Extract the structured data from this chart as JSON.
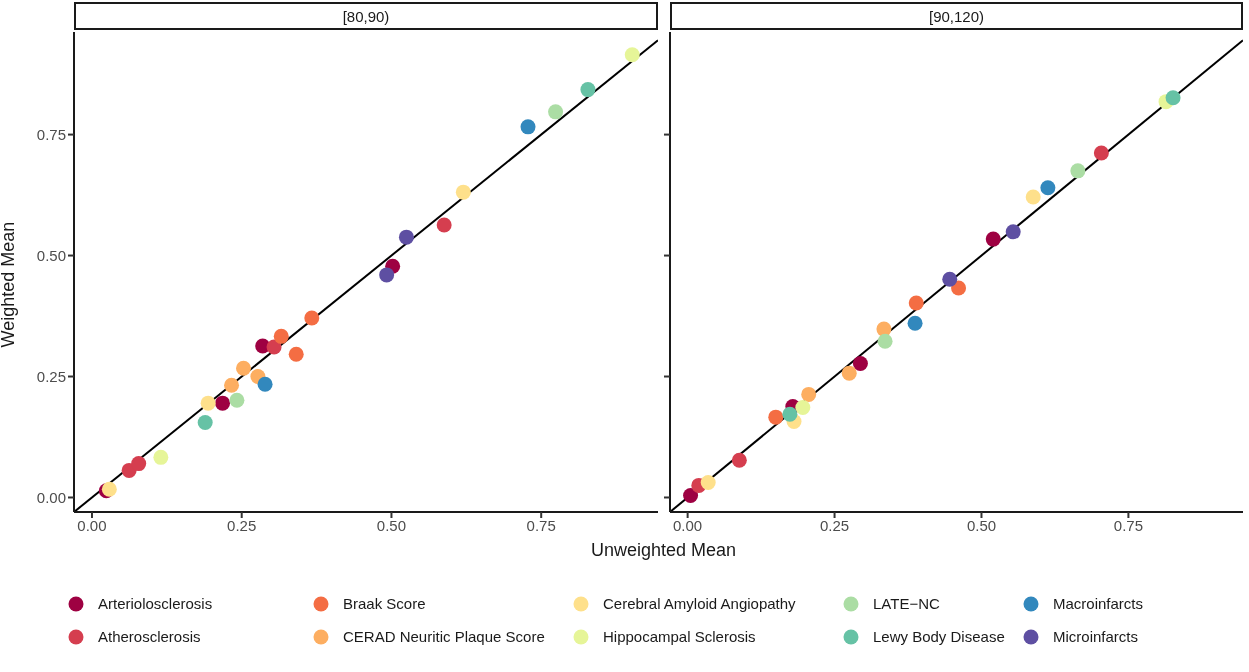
{
  "chart_data": [
    {
      "type": "scatter",
      "title": "[80,90)",
      "xlabel": "Unweighted Mean",
      "ylabel": "Weighted Mean",
      "xlim": [
        -0.03,
        0.945
      ],
      "ylim": [
        -0.03,
        0.962
      ],
      "xticks": [
        {
          "value": 0,
          "label": "0.00"
        },
        {
          "value": 0.25,
          "label": "0.25"
        },
        {
          "value": 0.5,
          "label": "0.50"
        },
        {
          "value": 0.75,
          "label": "0.75"
        }
      ],
      "yticks": [
        {
          "value": 0,
          "label": "0.00"
        },
        {
          "value": 0.25,
          "label": "0.25"
        },
        {
          "value": 0.5,
          "label": "0.50"
        },
        {
          "value": 0.75,
          "label": "0.75"
        }
      ],
      "marker": "circle",
      "legend": "bottom",
      "series": [
        {
          "name": "Arteriolosclerosis",
          "color": "#9e0142",
          "x": [
            0.024,
            0.218,
            0.285,
            0.502
          ],
          "values": [
            0.014,
            0.195,
            0.313,
            0.478
          ]
        },
        {
          "name": "Atherosclerosis",
          "color": "#d53e4f",
          "x": [
            0.062,
            0.078,
            0.304,
            0.588
          ],
          "values": [
            0.056,
            0.07,
            0.311,
            0.563
          ]
        },
        {
          "name": "Braak Score",
          "color": "#f46d43",
          "x": [
            0.316,
            0.341,
            0.367
          ],
          "values": [
            0.333,
            0.296,
            0.371
          ]
        },
        {
          "name": "CERAD Neuritic Plaque Score",
          "color": "#fdae61",
          "x": [
            0.233,
            0.253,
            0.277
          ],
          "values": [
            0.232,
            0.267,
            0.25
          ]
        },
        {
          "name": "Cerebral Amyloid Angiopathy",
          "color": "#fee08b",
          "x": [
            0.029,
            0.194,
            0.62
          ],
          "values": [
            0.017,
            0.195,
            0.631
          ]
        },
        {
          "name": "Hippocampal Sclerosis",
          "color": "#e6f598",
          "x": [
            0.115,
            0.902
          ],
          "values": [
            0.083,
            0.915
          ]
        },
        {
          "name": "LATE−NC",
          "color": "#abdda4",
          "x": [
            0.242,
            0.774
          ],
          "values": [
            0.201,
            0.797
          ]
        },
        {
          "name": "Lewy Body Disease",
          "color": "#66c2a5",
          "x": [
            0.189,
            0.828
          ],
          "values": [
            0.155,
            0.843
          ]
        },
        {
          "name": "Macroinfarcts",
          "color": "#3288bd",
          "x": [
            0.289,
            0.728
          ],
          "values": [
            0.234,
            0.766
          ]
        },
        {
          "name": "Microinfarcts",
          "color": "#5e4fa2",
          "x": [
            0.492,
            0.525
          ],
          "values": [
            0.46,
            0.538
          ]
        },
        {
          "type": "line",
          "marker": "none",
          "color": "#000000",
          "x": [
            -0.03,
            0.945
          ],
          "values": [
            -0.03,
            0.945
          ]
        }
      ]
    },
    {
      "type": "scatter",
      "title": "[90,120)",
      "xlim": [
        -0.03,
        0.945
      ],
      "ylim": [
        -0.03,
        0.962
      ],
      "xticks": [
        {
          "value": 0,
          "label": "0.00"
        },
        {
          "value": 0.25,
          "label": "0.25"
        },
        {
          "value": 0.5,
          "label": "0.50"
        },
        {
          "value": 0.75,
          "label": "0.75"
        }
      ],
      "yticks": [
        0,
        0.25,
        0.5,
        0.75
      ],
      "tick_labels": "x",
      "marker": "circle",
      "series": [
        {
          "color": "#9e0142",
          "x": [
            0.005,
            0.179,
            0.294,
            0.52
          ],
          "values": [
            0.004,
            0.188,
            0.277,
            0.534
          ]
        },
        {
          "color": "#d53e4f",
          "x": [
            0.019,
            0.088,
            0.704
          ],
          "values": [
            0.025,
            0.077,
            0.712
          ]
        },
        {
          "color": "#f46d43",
          "x": [
            0.15,
            0.389,
            0.461
          ],
          "values": [
            0.166,
            0.402,
            0.433
          ]
        },
        {
          "color": "#fdae61",
          "x": [
            0.206,
            0.275,
            0.334
          ],
          "values": [
            0.213,
            0.257,
            0.348
          ]
        },
        {
          "color": "#fee08b",
          "x": [
            0.035,
            0.181,
            0.588
          ],
          "values": [
            0.031,
            0.157,
            0.621
          ]
        },
        {
          "color": "#e6f598",
          "x": [
            0.196,
            0.814
          ],
          "values": [
            0.186,
            0.818
          ]
        },
        {
          "color": "#abdda4",
          "x": [
            0.336,
            0.664
          ],
          "values": [
            0.323,
            0.675
          ]
        },
        {
          "color": "#66c2a5",
          "x": [
            0.174,
            0.826
          ],
          "values": [
            0.172,
            0.826
          ]
        },
        {
          "color": "#3288bd",
          "x": [
            0.387,
            0.613
          ],
          "values": [
            0.36,
            0.64
          ]
        },
        {
          "color": "#5e4fa2",
          "x": [
            0.446,
            0.554
          ],
          "values": [
            0.451,
            0.549
          ]
        },
        {
          "type": "line",
          "marker": "none",
          "color": "#000000",
          "x": [
            -0.03,
            0.945
          ],
          "values": [
            -0.03,
            0.945
          ]
        }
      ]
    }
  ]
}
